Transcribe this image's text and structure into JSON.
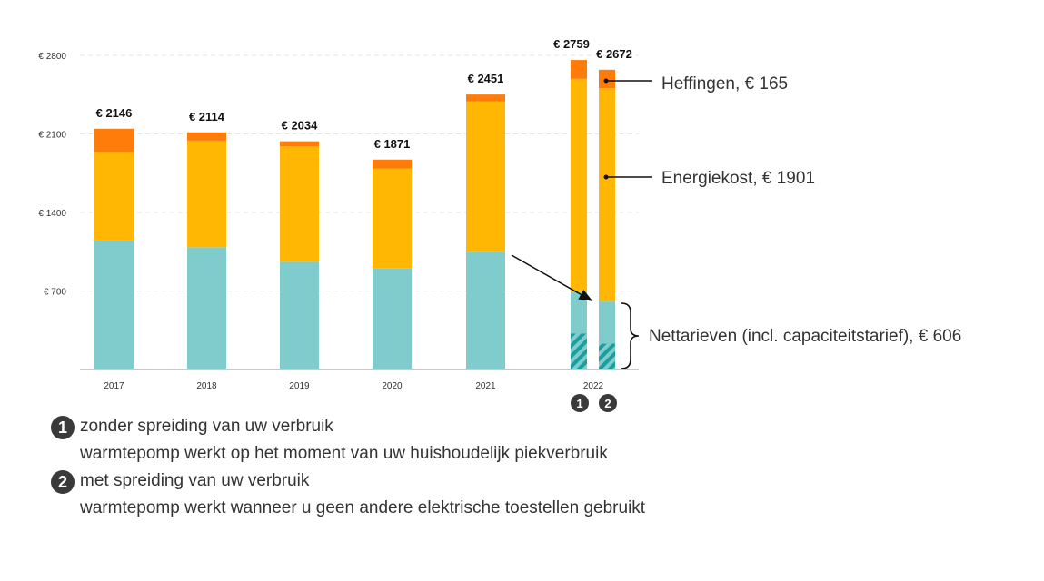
{
  "chart_data": {
    "type": "bar",
    "stacked": true,
    "categories": [
      "2017",
      "2018",
      "2019",
      "2020",
      "2021",
      "2022",
      "2022"
    ],
    "bar_markers": [
      "",
      "",
      "",
      "",
      "",
      "1",
      "2"
    ],
    "series": [
      {
        "name": "Nettarieven (incl. capaciteitstarief)",
        "color": "#80cccc",
        "values": [
          1150,
          1090,
          960,
          900,
          1045,
          690,
          606
        ]
      },
      {
        "name": "Energiekost",
        "color": "#ffb703",
        "values": [
          790,
          950,
          1030,
          890,
          1345,
          1901,
          1901
        ]
      },
      {
        "name": "Heffingen",
        "color": "#ff7b0a",
        "values": [
          206,
          74,
          44,
          81,
          61,
          168,
          165
        ]
      }
    ],
    "hatched_bottom": [
      0,
      0,
      0,
      0,
      0,
      320,
      230
    ],
    "totals": [
      "€ 2146",
      "€ 2114",
      "€ 2034",
      "€ 1871",
      "€ 2451",
      "€ 2759",
      "€ 2672"
    ],
    "x_tick_labels": [
      "2017",
      "2018",
      "2019",
      "2020",
      "2021",
      "2022"
    ],
    "y_ticks": [
      700,
      1400,
      2100,
      2800
    ],
    "y_tick_labels": [
      "€ 700",
      "€ 1400",
      "€ 2100",
      "€ 2800"
    ],
    "ylim": [
      0,
      2800
    ],
    "grid": true,
    "title": "",
    "xlabel": "",
    "ylabel": ""
  },
  "annotations": {
    "heffingen": "Heffingen, € 165",
    "energiekost": "Energiekost, € 1901",
    "nettarieven": "Nettarieven (incl. capaciteitstarief), € 606"
  },
  "notes": [
    {
      "marker": "1",
      "title": "zonder spreiding van uw verbruik",
      "subtitle": "warmtepomp werkt op het moment van uw huishoudelijk piekverbruik"
    },
    {
      "marker": "2",
      "title": "met spreiding van uw verbruik",
      "subtitle": "warmtepomp werkt wanneer u geen andere elektrische toestellen gebruikt"
    }
  ],
  "colors": {
    "grid": "#e3e3e3",
    "axis": "#b8b8b8",
    "hatch": "#1a9e9e",
    "arrow": "#111111",
    "badge": "#3a3a3a"
  }
}
